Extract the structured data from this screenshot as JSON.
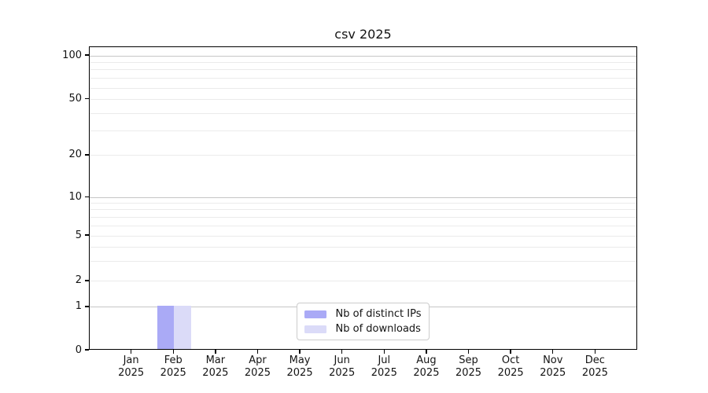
{
  "figure": {
    "background": "#ffffff"
  },
  "chart_data": {
    "type": "bar",
    "title": "csv 2025",
    "categories": [
      "Jan 2025",
      "Feb 2025",
      "Mar 2025",
      "Apr 2025",
      "May 2025",
      "Jun 2025",
      "Jul 2025",
      "Aug 2025",
      "Sep 2025",
      "Oct 2025",
      "Nov 2025",
      "Dec 2025"
    ],
    "series": [
      {
        "name": "Nb of distinct IPs",
        "color": "#aaaaf6",
        "values": [
          0,
          1,
          0,
          0,
          0,
          0,
          0,
          0,
          0,
          0,
          0,
          0
        ]
      },
      {
        "name": "Nb of downloads",
        "color": "#dbdbf8",
        "values": [
          0,
          1,
          0,
          0,
          0,
          0,
          0,
          0,
          0,
          0,
          0,
          0
        ]
      }
    ],
    "xlabel": "",
    "ylabel": "",
    "y_axis": {
      "scale": "log-like with zero baseline",
      "ticks": [
        0,
        1,
        2,
        5,
        10,
        20,
        50,
        100
      ],
      "minor_ticks": [
        3,
        4,
        6,
        7,
        8,
        9,
        30,
        40,
        60,
        70,
        80,
        90
      ],
      "decade_gridlines": [
        1,
        10,
        100
      ],
      "ylim": [
        0,
        115
      ]
    },
    "legend_position": "lower center",
    "grid": "horizontal"
  },
  "colors": {
    "grid_decade": "#c6c6c6",
    "grid_minor": "#ebebeb",
    "spine": "#000000",
    "text": "#141414",
    "legend_border": "#cccccc"
  }
}
